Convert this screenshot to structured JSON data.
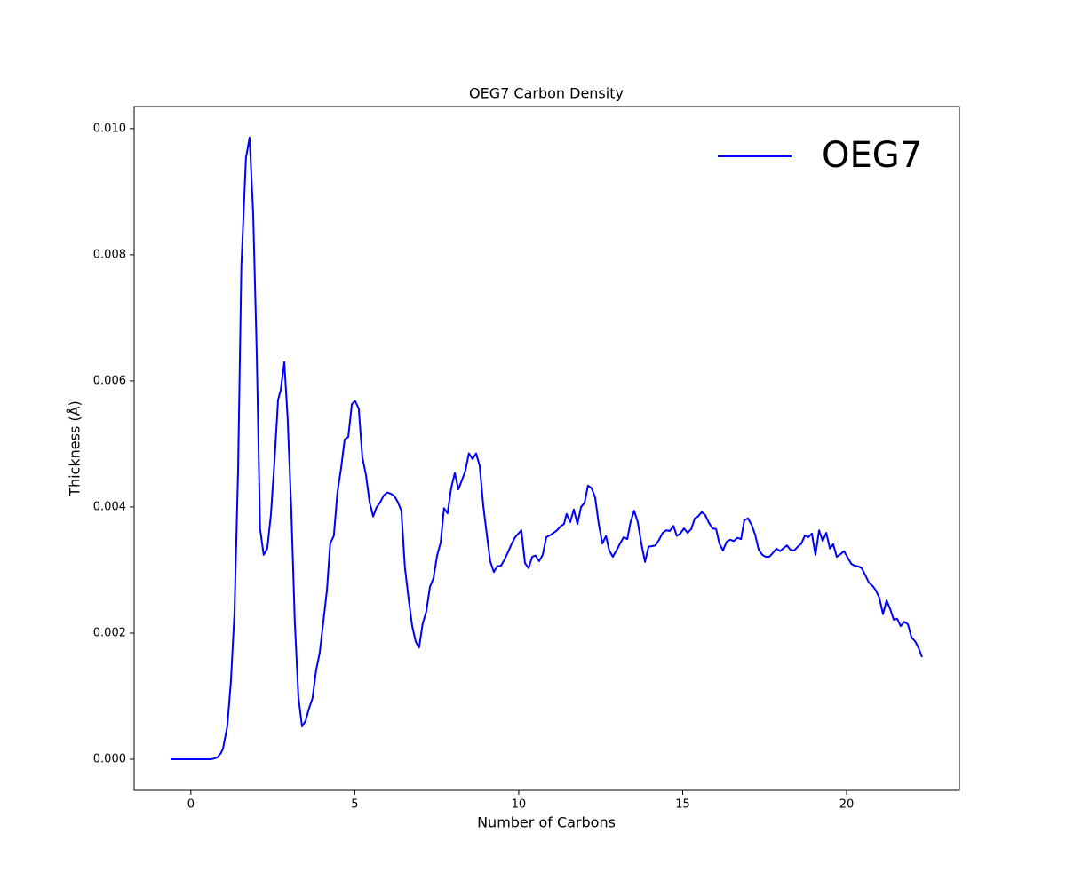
{
  "chart_data": {
    "type": "line",
    "title": "OEG7 Carbon Density",
    "x_label": "Number of Carbons",
    "y_label": "Thickness (Å)",
    "xlim": [
      -1.73,
      23.44
    ],
    "ylim": [
      -0.000493,
      0.01035
    ],
    "xticks": [
      0,
      5,
      10,
      15,
      20
    ],
    "yticks": [
      {
        "value": 0,
        "label": "0.000"
      },
      0.002,
      0.004,
      0.006,
      0.008,
      {
        "value": 0.01,
        "label": "0.010"
      }
    ],
    "legend": "upper right",
    "grid": false,
    "series": [
      {
        "name": "OEG7",
        "color": "#0000ff",
        "x": [
          -0.62,
          0.6,
          0.7,
          0.81,
          0.92,
          0.98,
          1.11,
          1.22,
          1.33,
          1.44,
          1.54,
          1.68,
          1.79,
          1.9,
          2.01,
          2.11,
          2.22,
          2.33,
          2.44,
          2.55,
          2.66,
          2.74,
          2.85,
          2.95,
          3.06,
          3.17,
          3.28,
          3.39,
          3.5,
          3.6,
          3.71,
          3.82,
          3.93,
          4.04,
          4.15,
          4.25,
          4.36,
          4.47,
          4.58,
          4.69,
          4.8,
          4.91,
          5.01,
          5.12,
          5.23,
          5.34,
          5.45,
          5.56,
          5.66,
          5.77,
          5.88,
          5.99,
          6.1,
          6.21,
          6.31,
          6.42,
          6.53,
          6.64,
          6.75,
          6.86,
          6.96,
          7.07,
          7.18,
          7.29,
          7.4,
          7.51,
          7.62,
          7.72,
          7.83,
          7.94,
          8.05,
          8.16,
          8.27,
          8.37,
          8.48,
          8.59,
          8.7,
          8.81,
          8.92,
          9.02,
          9.13,
          9.24,
          9.35,
          9.46,
          9.57,
          9.67,
          9.78,
          9.89,
          10.08,
          10.19,
          10.3,
          10.41,
          10.51,
          10.62,
          10.73,
          10.84,
          10.95,
          11.06,
          11.17,
          11.27,
          11.38,
          11.46,
          11.57,
          11.68,
          11.79,
          11.9,
          12.01,
          12.11,
          12.22,
          12.33,
          12.44,
          12.55,
          12.66,
          12.76,
          12.87,
          12.98,
          13.09,
          13.2,
          13.31,
          13.41,
          13.52,
          13.63,
          13.74,
          13.85,
          13.96,
          14.07,
          14.17,
          14.28,
          14.39,
          14.5,
          14.61,
          14.72,
          14.82,
          14.93,
          15.04,
          15.15,
          15.26,
          15.37,
          15.47,
          15.58,
          15.69,
          15.8,
          15.91,
          16.02,
          16.12,
          16.23,
          16.34,
          16.45,
          16.56,
          16.67,
          16.78,
          16.88,
          16.99,
          17.1,
          17.21,
          17.32,
          17.43,
          17.53,
          17.64,
          17.75,
          17.86,
          17.97,
          18.08,
          18.18,
          18.29,
          18.4,
          18.51,
          18.62,
          18.73,
          18.83,
          18.94,
          19.05,
          19.16,
          19.27,
          19.38,
          19.49,
          19.59,
          19.7,
          19.81,
          19.92,
          20.03,
          20.14,
          20.24,
          20.35,
          20.46,
          20.57,
          20.68,
          20.79,
          20.89,
          21.0,
          21.11,
          21.22,
          21.33,
          21.44,
          21.54,
          21.65,
          21.76,
          21.87,
          21.98,
          22.09,
          22.2,
          22.3
        ],
        "values": [
          0,
          0,
          1e-05,
          3e-05,
          0.0001,
          0.00017,
          0.00052,
          0.00123,
          0.00232,
          0.00458,
          0.00782,
          0.00954,
          0.00986,
          0.00866,
          0.00641,
          0.00366,
          0.00324,
          0.00334,
          0.00387,
          0.00472,
          0.0057,
          0.00585,
          0.0063,
          0.00542,
          0.00401,
          0.00218,
          0.00099,
          0.00052,
          0.00061,
          0.0008,
          0.00097,
          0.00141,
          0.00169,
          0.00218,
          0.00268,
          0.00342,
          0.00354,
          0.00423,
          0.00461,
          0.00507,
          0.00511,
          0.00563,
          0.00568,
          0.00556,
          0.00479,
          0.00451,
          0.00408,
          0.00385,
          0.00399,
          0.00407,
          0.00418,
          0.00423,
          0.00421,
          0.00417,
          0.00408,
          0.00394,
          0.00303,
          0.00255,
          0.00211,
          0.00186,
          0.00177,
          0.00215,
          0.00234,
          0.00273,
          0.00287,
          0.00323,
          0.00344,
          0.00398,
          0.0039,
          0.0043,
          0.00454,
          0.00428,
          0.00443,
          0.00457,
          0.00485,
          0.00476,
          0.00485,
          0.00465,
          0.00401,
          0.00359,
          0.00314,
          0.00297,
          0.00306,
          0.00307,
          0.00317,
          0.00328,
          0.00341,
          0.00352,
          0.00363,
          0.00311,
          0.00303,
          0.00321,
          0.00323,
          0.00314,
          0.00324,
          0.00352,
          0.00355,
          0.00359,
          0.00363,
          0.00369,
          0.00373,
          0.00389,
          0.00376,
          0.00396,
          0.00373,
          0.004,
          0.00407,
          0.00434,
          0.0043,
          0.00415,
          0.00373,
          0.00342,
          0.00354,
          0.00331,
          0.00321,
          0.00331,
          0.00342,
          0.00352,
          0.00349,
          0.00376,
          0.00394,
          0.00376,
          0.00342,
          0.00313,
          0.00337,
          0.00338,
          0.00339,
          0.00348,
          0.00359,
          0.00363,
          0.00362,
          0.0037,
          0.00354,
          0.00358,
          0.00366,
          0.00359,
          0.00365,
          0.00382,
          0.00385,
          0.00392,
          0.00387,
          0.00375,
          0.00366,
          0.00365,
          0.00342,
          0.00331,
          0.00345,
          0.00348,
          0.00346,
          0.00351,
          0.00349,
          0.00379,
          0.00382,
          0.00372,
          0.00356,
          0.00332,
          0.00324,
          0.00321,
          0.00321,
          0.00327,
          0.00334,
          0.0033,
          0.00335,
          0.00339,
          0.00332,
          0.00331,
          0.00337,
          0.00342,
          0.00355,
          0.00352,
          0.00358,
          0.00324,
          0.00363,
          0.00346,
          0.00359,
          0.00334,
          0.00341,
          0.00321,
          0.00325,
          0.0033,
          0.0032,
          0.0031,
          0.00307,
          0.00306,
          0.00303,
          0.00292,
          0.0028,
          0.00275,
          0.00268,
          0.00256,
          0.0023,
          0.00252,
          0.00238,
          0.00221,
          0.00223,
          0.00211,
          0.00218,
          0.00214,
          0.00193,
          0.00187,
          0.00176,
          0.00162
        ]
      }
    ]
  }
}
